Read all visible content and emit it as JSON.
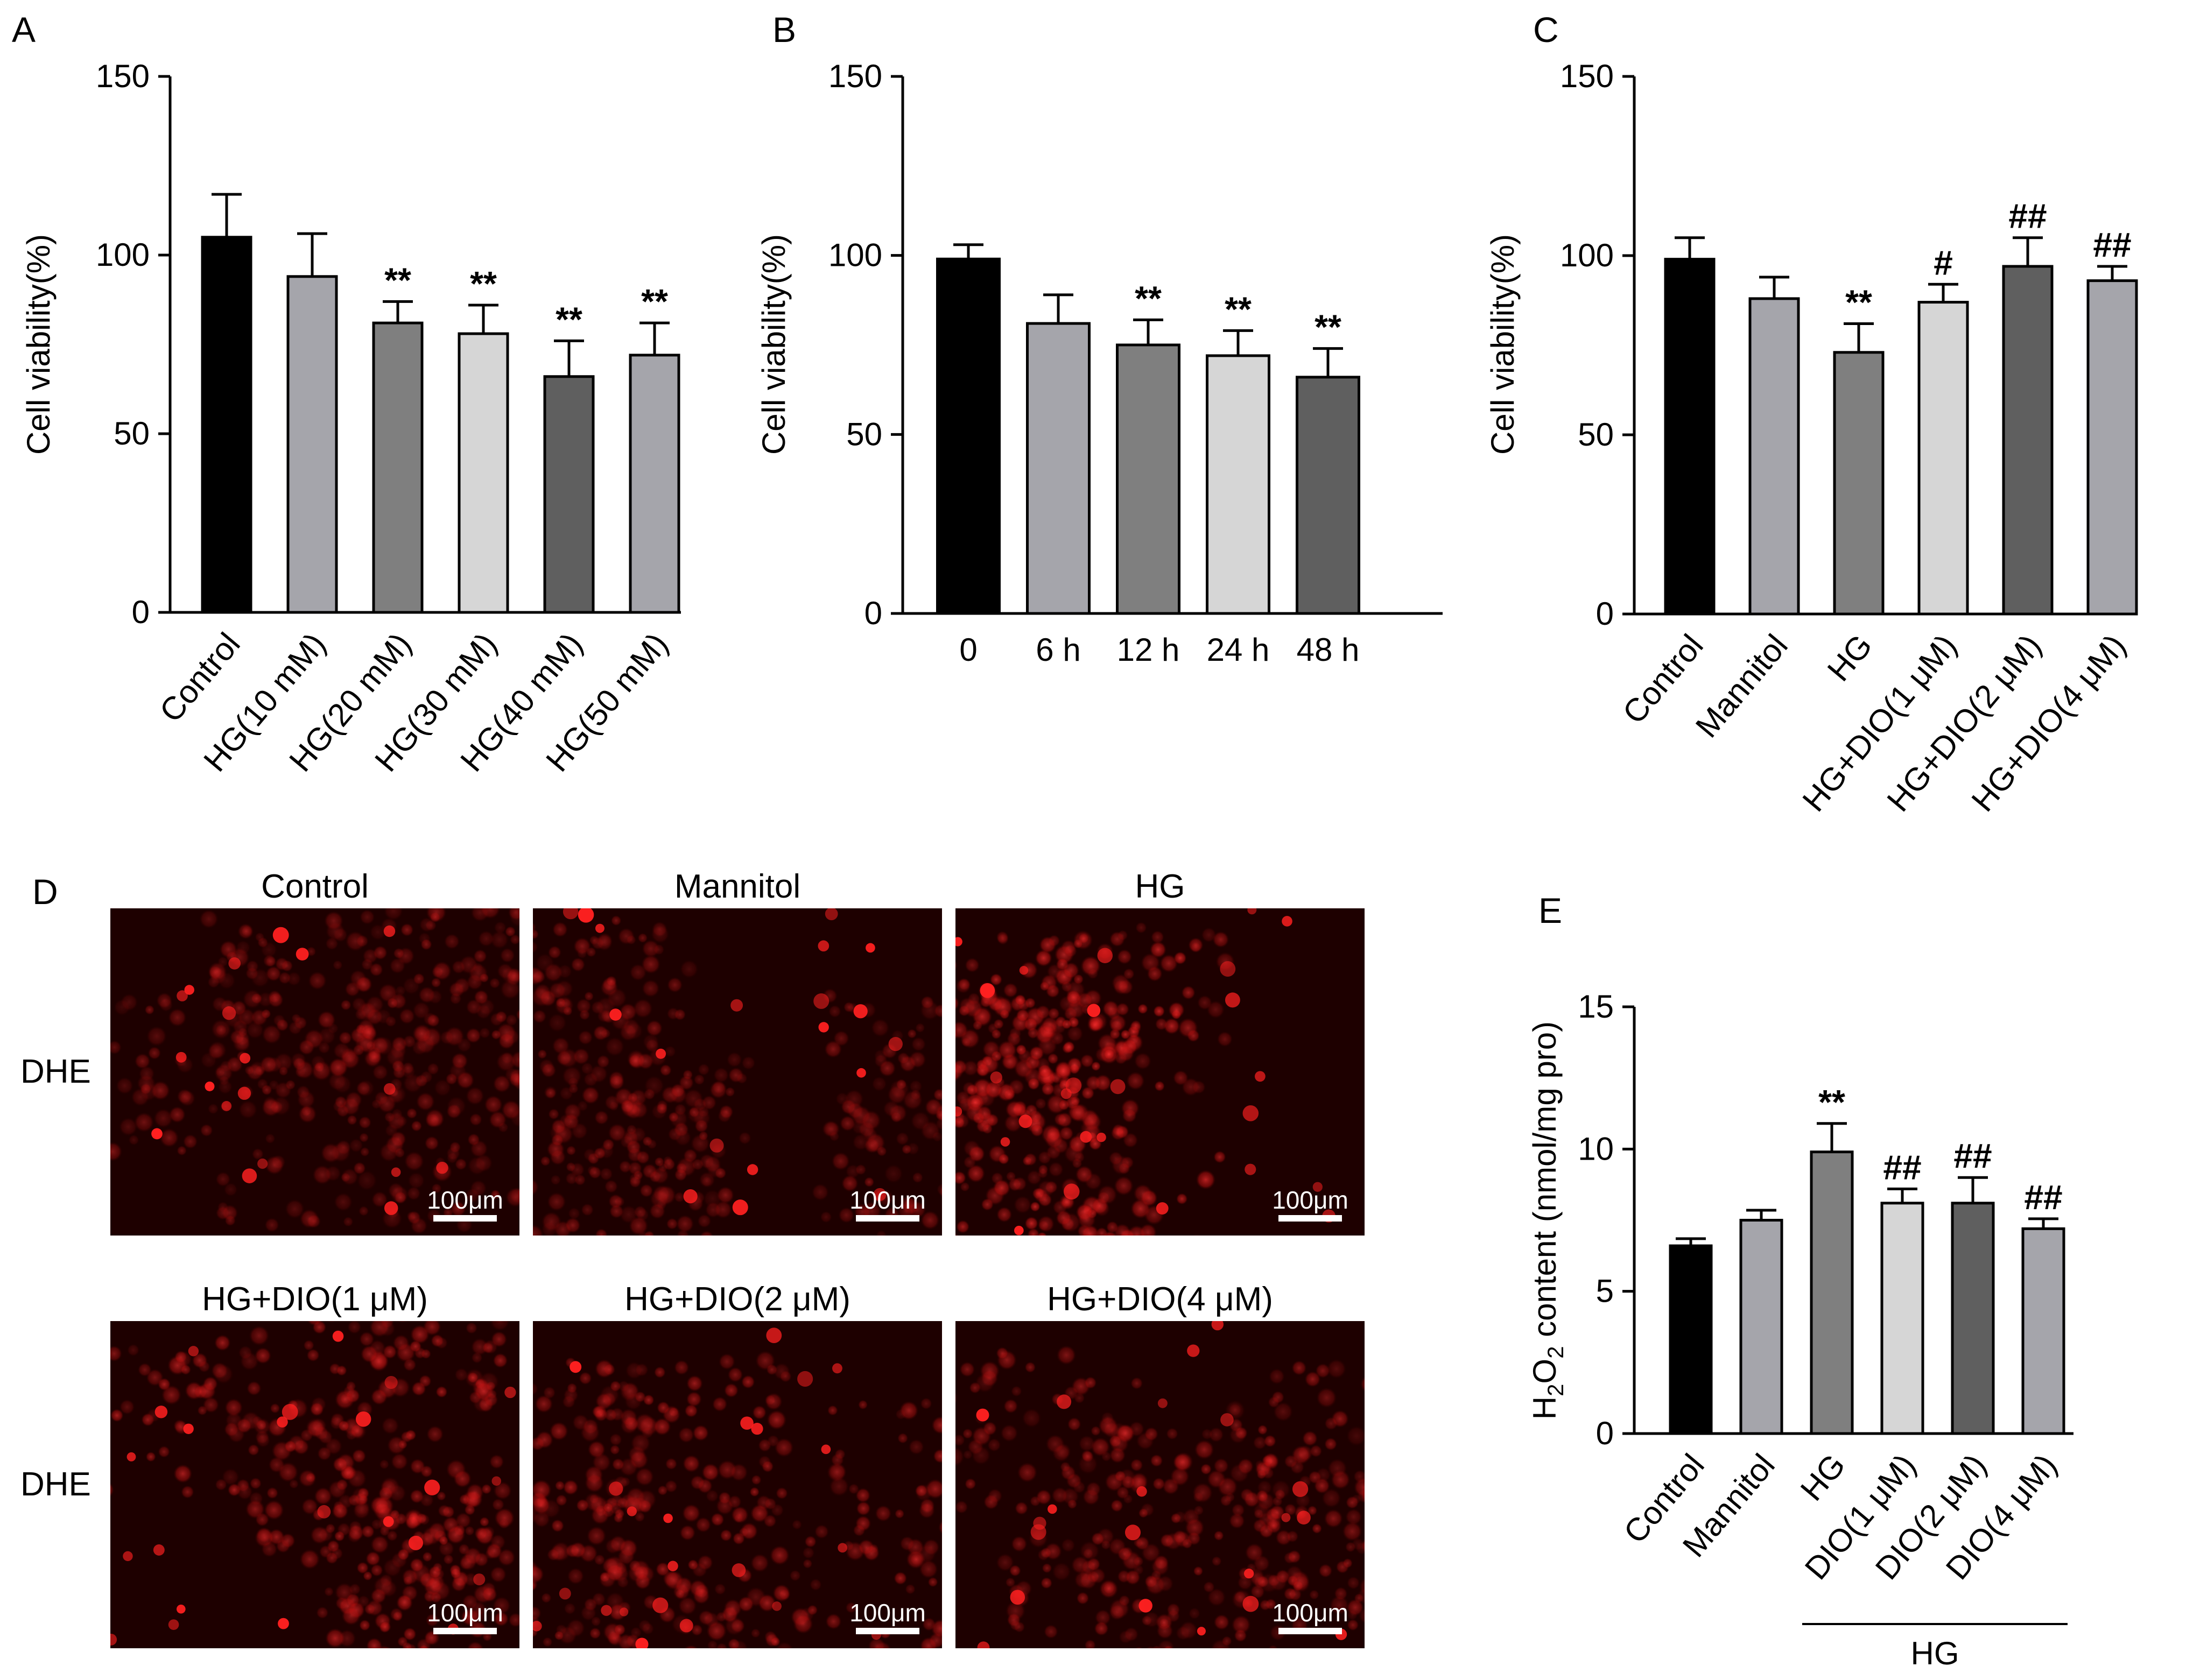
{
  "figure": {
    "panel_letters": [
      "A",
      "B",
      "C",
      "D",
      "E"
    ]
  },
  "chart_data": [
    {
      "id": "A",
      "type": "bar",
      "ylabel": "Cell viability(%)",
      "ylim": [
        0,
        150
      ],
      "yticks": [
        0,
        50,
        100,
        150
      ],
      "categories": [
        "Control",
        "HG(10 mM)",
        "HG(20 mM)",
        "HG(30 mM)",
        "HG(40 mM)",
        "HG(50 mM)"
      ],
      "values": [
        105,
        94,
        81,
        78,
        66,
        72
      ],
      "errors": [
        12,
        12,
        6,
        8,
        10,
        9
      ],
      "significance": [
        "",
        "",
        "**",
        "**",
        "**",
        "**"
      ],
      "colors": [
        "#000000",
        "#a5a5ab",
        "#7f7f7f",
        "#d6d6d6",
        "#5f5f5f",
        "#a5a5ab"
      ]
    },
    {
      "id": "B",
      "type": "bar",
      "ylabel": "Cell viability(%)",
      "ylim": [
        0,
        150
      ],
      "yticks": [
        0,
        50,
        100,
        150
      ],
      "categories": [
        "0",
        "6 h",
        "12 h",
        "24 h",
        "48 h"
      ],
      "values": [
        99,
        81,
        75,
        72,
        66
      ],
      "errors": [
        4,
        8,
        7,
        7,
        8
      ],
      "significance": [
        "",
        "",
        "**",
        "**",
        "**"
      ],
      "colors": [
        "#000000",
        "#a5a5ab",
        "#7f7f7f",
        "#d6d6d6",
        "#5f5f5f"
      ]
    },
    {
      "id": "C",
      "type": "bar",
      "ylabel": "Cell viability(%)",
      "ylim": [
        0,
        150
      ],
      "yticks": [
        0,
        50,
        100,
        150
      ],
      "categories": [
        "Control",
        "Mannitol",
        "HG",
        "HG+DIO(1 μM)",
        "HG+DIO(2 μM)",
        "HG+DIO(4 μM)"
      ],
      "values": [
        99,
        88,
        73,
        87,
        97,
        93
      ],
      "errors": [
        6,
        6,
        8,
        5,
        8,
        4
      ],
      "significance": [
        "",
        "",
        "**",
        "#",
        "##",
        "##"
      ],
      "colors": [
        "#000000",
        "#a5a5ab",
        "#7f7f7f",
        "#d6d6d6",
        "#5f5f5f",
        "#a5a5ab"
      ]
    },
    {
      "id": "E",
      "type": "bar",
      "ylabel_main": "H",
      "ylabel_sub1": "2",
      "ylabel_mid": "O",
      "ylabel_sub2": "2",
      "ylabel_rest": " content (nmol/mg pro)",
      "ylim": [
        0,
        15
      ],
      "yticks": [
        0,
        5,
        10,
        15
      ],
      "categories": [
        "Control",
        "Mannitol",
        "HG",
        "DIO(1 μM)",
        "DIO(2 μM)",
        "DIO(4 μM)"
      ],
      "group_label": "HG",
      "values": [
        6.6,
        7.5,
        9.9,
        8.1,
        8.1,
        7.2
      ],
      "errors": [
        0.25,
        0.35,
        1.0,
        0.5,
        0.9,
        0.35
      ],
      "significance": [
        "",
        "",
        "**",
        "##",
        "##",
        "##"
      ],
      "colors": [
        "#000000",
        "#a5a5ab",
        "#7f7f7f",
        "#d6d6d6",
        "#5f5f5f",
        "#a5a5ab"
      ]
    }
  ],
  "images": {
    "row_label": "DHE",
    "titles": [
      "Control",
      "Mannitol",
      "HG",
      "HG+DIO(1 μM)",
      "HG+DIO(2 μM)",
      "HG+DIO(4 μM)"
    ],
    "scale_bar_label": "100μm",
    "intensity": [
      0.55,
      0.55,
      0.9,
      0.75,
      0.7,
      0.65
    ]
  }
}
